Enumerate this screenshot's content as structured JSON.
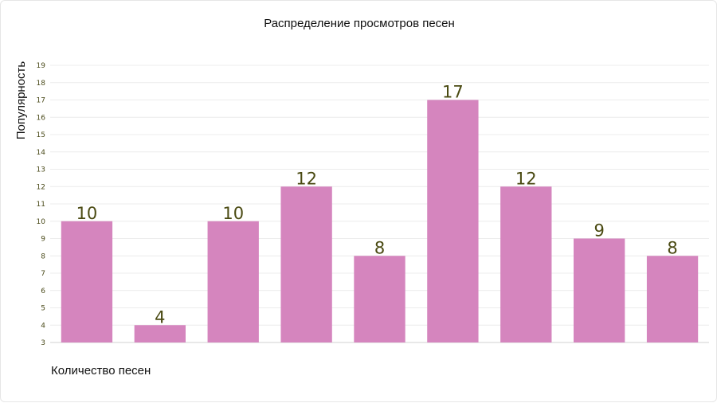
{
  "chart_data": {
    "type": "bar",
    "title": "Распределение просмотров песен",
    "xlabel": "Количество песен",
    "ylabel": "Популярность",
    "categories": [
      "",
      "",
      "",
      "",
      "",
      "",
      "",
      "",
      ""
    ],
    "values": [
      10,
      4,
      10,
      12,
      8,
      17,
      12,
      9,
      8
    ],
    "ylim": [
      3,
      19
    ],
    "yticks": [
      3,
      4,
      5,
      6,
      7,
      8,
      9,
      10,
      11,
      12,
      13,
      14,
      15,
      16,
      17,
      18,
      19
    ],
    "grid": true,
    "bar_color": "#d585be",
    "label_color": "#4a4a12"
  }
}
